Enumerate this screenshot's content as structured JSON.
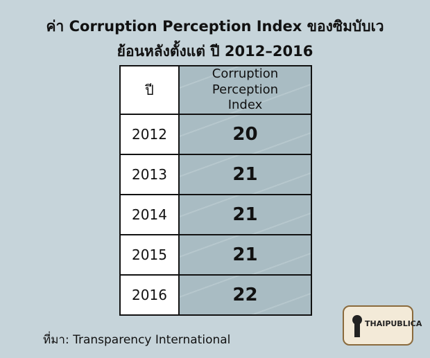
{
  "header": {
    "title_lines": [
      "ค่า Corruption Perception Index ของซิมบับเว",
      "ย้อนหลังตั้งแต่ ปี 2012–2016"
    ]
  },
  "table": {
    "columns": [
      "ปี",
      "Corruption Perception Index"
    ],
    "rows": [
      [
        2012,
        20
      ],
      [
        2013,
        21
      ],
      [
        2014,
        21
      ],
      [
        2015,
        21
      ],
      [
        2016,
        22
      ]
    ]
  },
  "source": "ที่มา: Transparency International",
  "logo": "THAIPUBLICA"
}
